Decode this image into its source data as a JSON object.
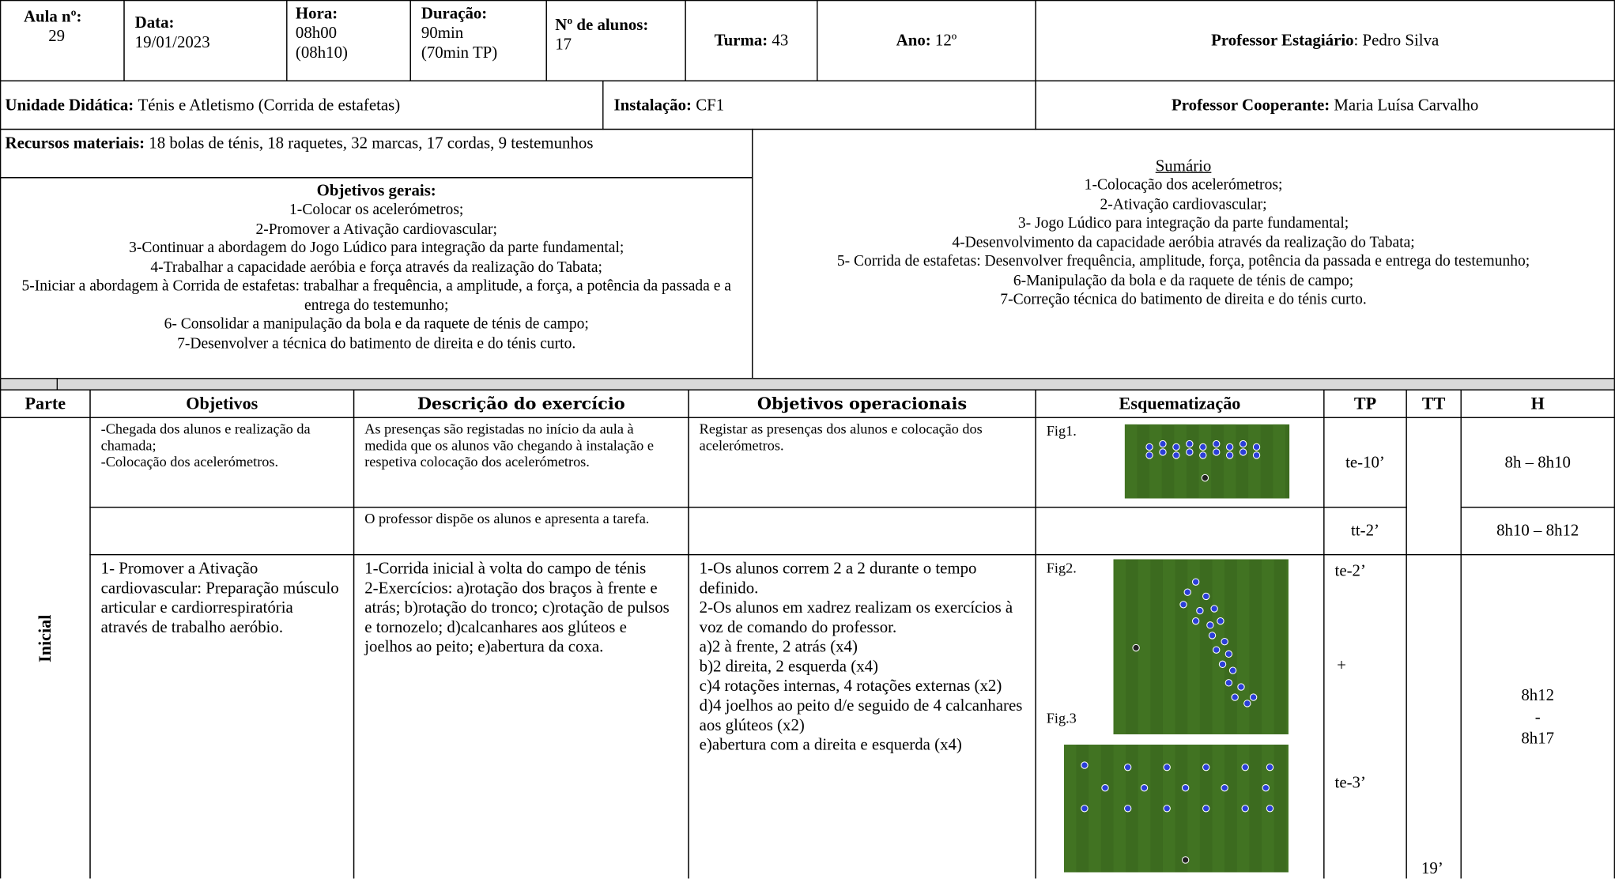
{
  "header": {
    "aula": {
      "label": "Aula nº:",
      "value": "29"
    },
    "data": {
      "label": "Data:",
      "value": "19/01/2023"
    },
    "hora": {
      "label": "Hora:",
      "lines": [
        "08h00",
        "(08h10)"
      ]
    },
    "duracao": {
      "label": "Duração:",
      "lines": [
        "90min",
        "(70min TP)"
      ]
    },
    "alunos": {
      "label": "Nº de alunos:",
      "value": "17"
    },
    "turma": {
      "label": "Turma:",
      "value": "43"
    },
    "ano": {
      "label": "Ano:",
      "value": "12º"
    },
    "professor_estagiario": {
      "label": "Professor Estagiário",
      "value": ": Pedro Silva"
    },
    "unidade": {
      "label": "Unidade Didática:",
      "value": "Ténis e Atletismo (Corrida de estafetas)"
    },
    "instalacao": {
      "label": "Instalação:",
      "value": "CF1"
    },
    "professor_cooperante": {
      "label": "Professor Cooperante:",
      "value": "Maria Luísa Carvalho"
    },
    "recursos": {
      "label": "Recursos materiais:",
      "value": "18 bolas de ténis, 18 raquetes, 32 marcas, 17 cordas, 9 testemunhos"
    }
  },
  "objetivos_gerais": {
    "title": "Objetivos gerais:",
    "items": [
      "1-Colocar os acelerómetros;",
      "2-Promover a Ativação cardiovascular;",
      "3-Continuar a abordagem do Jogo Lúdico para integração da parte fundamental;",
      "4-Trabalhar a capacidade aeróbia e força através da realização do Tabata;",
      "5-Iniciar a abordagem à Corrida de estafetas: trabalhar a frequência, a amplitude, a força, a potência da passada e a entrega do testemunho;",
      "6- Consolidar a manipulação da bola e da raquete de ténis de campo;",
      "7-Desenvolver a técnica do batimento de direita e do ténis curto."
    ]
  },
  "sumario": {
    "title": "Sumário",
    "items": [
      "1-Colocação dos acelerómetros;",
      "2-Ativação cardiovascular;",
      "3- Jogo Lúdico para integração da parte fundamental;",
      "4-Desenvolvimento da capacidade aeróbia através da realização do Tabata;",
      "5- Corrida de estafetas: Desenvolver frequência, amplitude, força, potência da passada e entrega do testemunho;",
      "6-Manipulação da bola e da raquete de ténis de campo;",
      "7-Correção técnica do batimento de direita e do ténis curto."
    ]
  },
  "table": {
    "headers": [
      "Parte",
      "Objetivos",
      "Descrição do exercício",
      "Objetivos operacionais",
      "Esquematização",
      "TP",
      "TT",
      "H"
    ],
    "parte": "Inicial",
    "tt": "19’",
    "rows": [
      {
        "objetivos": [
          "-Chegada dos alunos e realização da chamada;",
          "-Colocação dos acelerómetros."
        ],
        "descricao": [
          "As presenças são registadas no início da aula à medida que os alunos vão chegando à instalação e respetiva colocação dos acelerómetros."
        ],
        "operacionais": [
          "Registar as presenças dos alunos e colocação dos acelerómetros."
        ],
        "figs": [
          "Fig1."
        ],
        "tp": "te-10’",
        "h": "8h – 8h10"
      },
      {
        "descricao": [
          "O professor dispõe os alunos e apresenta a tarefa."
        ],
        "tp": "tt-2’",
        "h": "8h10 – 8h12"
      },
      {
        "objetivos": [
          "1- Promover a Ativação cardiovascular: Preparação músculo articular e cardiorrespiratória através de trabalho aeróbio."
        ],
        "descricao": [
          "1-Corrida inicial à volta do campo de ténis",
          "2-Exercícios: a)rotação dos braços à frente e atrás; b)rotação do tronco; c)rotação de pulsos e tornozelo; d)calcanhares aos glúteos e joelhos ao peito; e)abertura da coxa."
        ],
        "operacionais": [
          "1-Os alunos correm 2 a 2 durante o tempo definido.",
          "2-Os alunos em xadrez realizam os exercícios à voz de comando do professor.",
          "a)2 à frente, 2 atrás (x4)",
          "b)2 direita, 2 esquerda (x4)",
          "c)4 rotações internas, 4 rotações externas (x2)",
          "d)4 joelhos ao peito d/e seguido de 4 calcanhares aos glúteos (x2)",
          "e)abertura com a direita e esquerda (x4)"
        ],
        "figs": [
          "Fig2.",
          "Fig.3"
        ],
        "tp": [
          "te-2’",
          "+",
          "te-3’"
        ],
        "h": [
          "8h12",
          "-",
          "8h17"
        ]
      }
    ]
  }
}
